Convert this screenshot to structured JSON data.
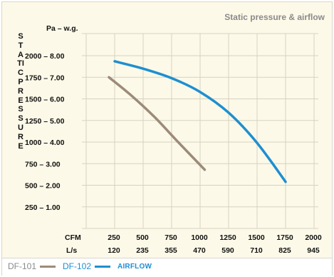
{
  "chart_data": {
    "type": "line",
    "title": "Static pressure & airflow",
    "ylabel": "STATIC PRESSURE",
    "y_unit_label": "Pa – w.g.",
    "x_unit_labels": [
      "CFM",
      "L/s"
    ],
    "xlim": [
      0,
      2000
    ],
    "ylim": [
      250,
      2000
    ],
    "x_ticks": [
      {
        "cfm": "250",
        "ls": "120"
      },
      {
        "cfm": "500",
        "ls": "235"
      },
      {
        "cfm": "750",
        "ls": "355"
      },
      {
        "cfm": "1000",
        "ls": "470"
      },
      {
        "cfm": "1250",
        "ls": "590"
      },
      {
        "cfm": "1500",
        "ls": "710"
      },
      {
        "cfm": "1750",
        "ls": "825"
      },
      {
        "cfm": "2000",
        "ls": "945"
      }
    ],
    "y_ticks": [
      "2000 – 8.00",
      "1750 – 7.00",
      "1500 – 6.00",
      "1250 – 5.00",
      "1000 – 4.00",
      "750 – 3.00",
      "500 – 2.00",
      "250 – 1.00"
    ],
    "grid": true,
    "legend_position": "bottom-left",
    "series": [
      {
        "name": "DF-101",
        "color": "#9c8b7a",
        "x": [
          200,
          400,
          600,
          800,
          1040
        ],
        "y": [
          1750,
          1535,
          1290,
          1010,
          680
        ]
      },
      {
        "name": "DF-102",
        "color": "#1e8fd0",
        "x": [
          250,
          500,
          750,
          1000,
          1250,
          1500,
          1750
        ],
        "y": [
          1935,
          1850,
          1740,
          1580,
          1340,
          990,
          540
        ]
      }
    ],
    "legend_note": "AIRFLOW"
  }
}
